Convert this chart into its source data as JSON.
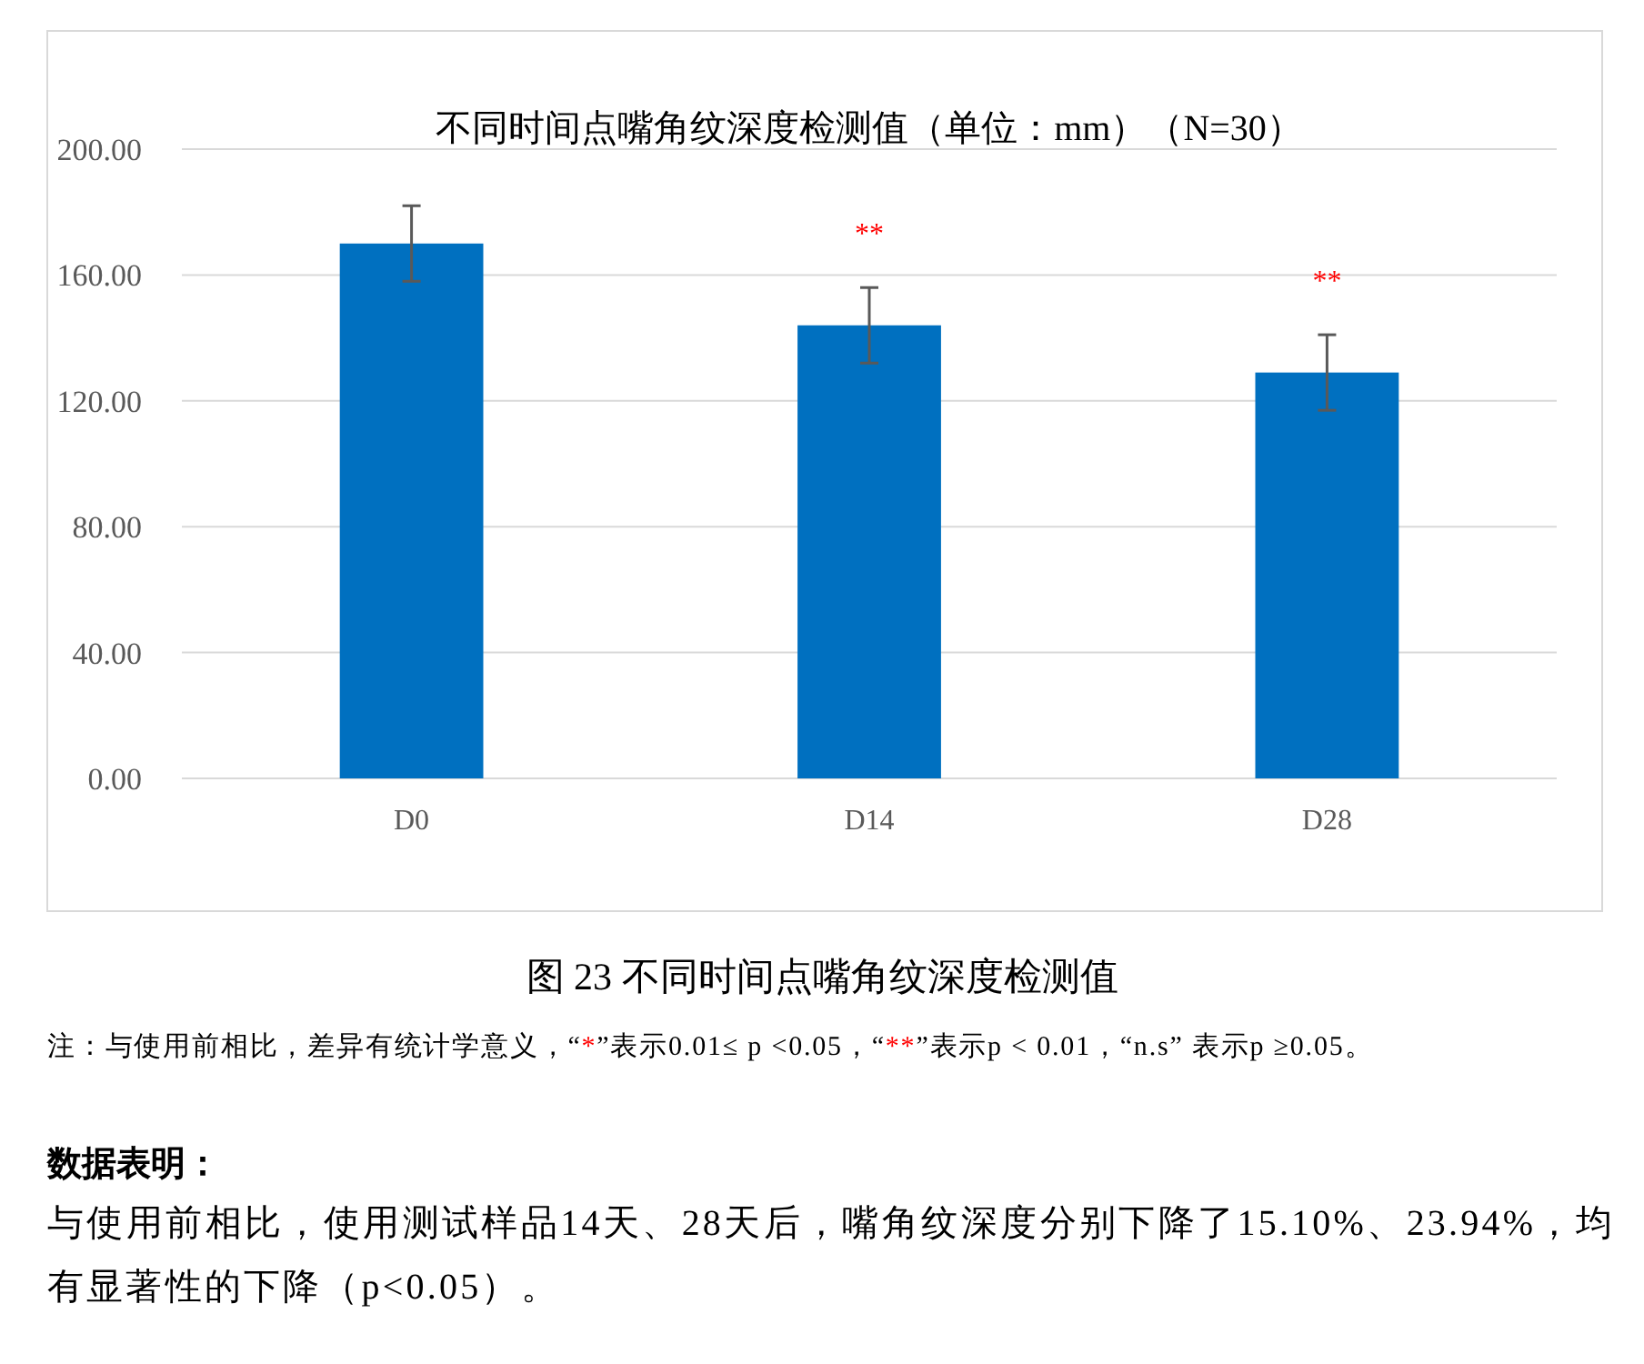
{
  "chart_data": {
    "type": "bar",
    "title": "不同时间点嘴角纹深度检测值（单位：mm）（N=30）",
    "categories": [
      "D0",
      "D14",
      "D28"
    ],
    "values": [
      170,
      144,
      129
    ],
    "errors": [
      12,
      12,
      12
    ],
    "value_labels": [
      null,
      "**",
      "**"
    ],
    "color": "#0070c0",
    "ylim": [
      0,
      200
    ],
    "yticks": [
      {
        "value": 0,
        "label": "0.00"
      },
      {
        "value": 40,
        "label": "40.00"
      },
      {
        "value": 80,
        "label": "80.00"
      },
      {
        "value": 120,
        "label": "120.00"
      },
      {
        "value": 160,
        "label": "160.00"
      },
      {
        "value": 200,
        "label": "200.00"
      }
    ],
    "grid": "y",
    "annotations": [
      "图 23 不同时间点嘴角纹深度检测值",
      "注：与使用前相比，差异有统计学意义，“*”表示0.01≤ p <0.05，“**”表示p < 0.01，“n.s” 表示p ≥0.05。",
      "数据表明：",
      "与使用前相比，使用测试样品14天、28天后，嘴角纹深度分别下降了15.10%、23.94%，均有显著性的下降（p<0.05）。"
    ]
  }
}
